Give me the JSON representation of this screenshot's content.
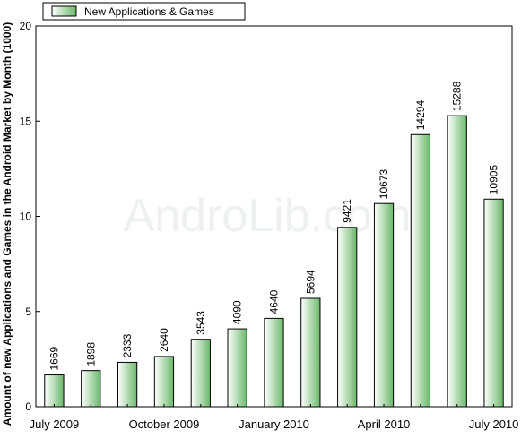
{
  "chart_data": {
    "type": "bar",
    "ylabel": "Amount of new Applications and Games in the Android Market by Month (1000)",
    "ylim": [
      0,
      20
    ],
    "yticks": [
      0,
      5,
      10,
      15,
      20
    ],
    "legend_position": "top-left",
    "grid": false,
    "watermark": "AndroLib.com",
    "series": [
      {
        "name": "New Applications & Games",
        "color": "#6ab86a",
        "values": [
          1.669,
          1.898,
          2.333,
          2.64,
          3.543,
          4.09,
          4.64,
          5.694,
          9.421,
          10.673,
          14.294,
          15.288,
          10.905
        ],
        "data_labels": [
          "1669",
          "1898",
          "2333",
          "2640",
          "3543",
          "4090",
          "4640",
          "5694",
          "9421",
          "10673",
          "14294",
          "15288",
          "10905"
        ]
      }
    ],
    "categories": [
      "July 2009",
      "August 2009",
      "September 2009",
      "October 2009",
      "November 2009",
      "December 2009",
      "January 2010",
      "February 2010",
      "March 2010",
      "April 2010",
      "May 2010",
      "June 2010",
      "July 2010"
    ],
    "visible_xtick_labels": [
      {
        "index": 0,
        "label": "July 2009"
      },
      {
        "index": 3,
        "label": "October 2009"
      },
      {
        "index": 6,
        "label": "January 2010"
      },
      {
        "index": 9,
        "label": "April 2010"
      },
      {
        "index": 12,
        "label": "July 2010"
      }
    ]
  }
}
